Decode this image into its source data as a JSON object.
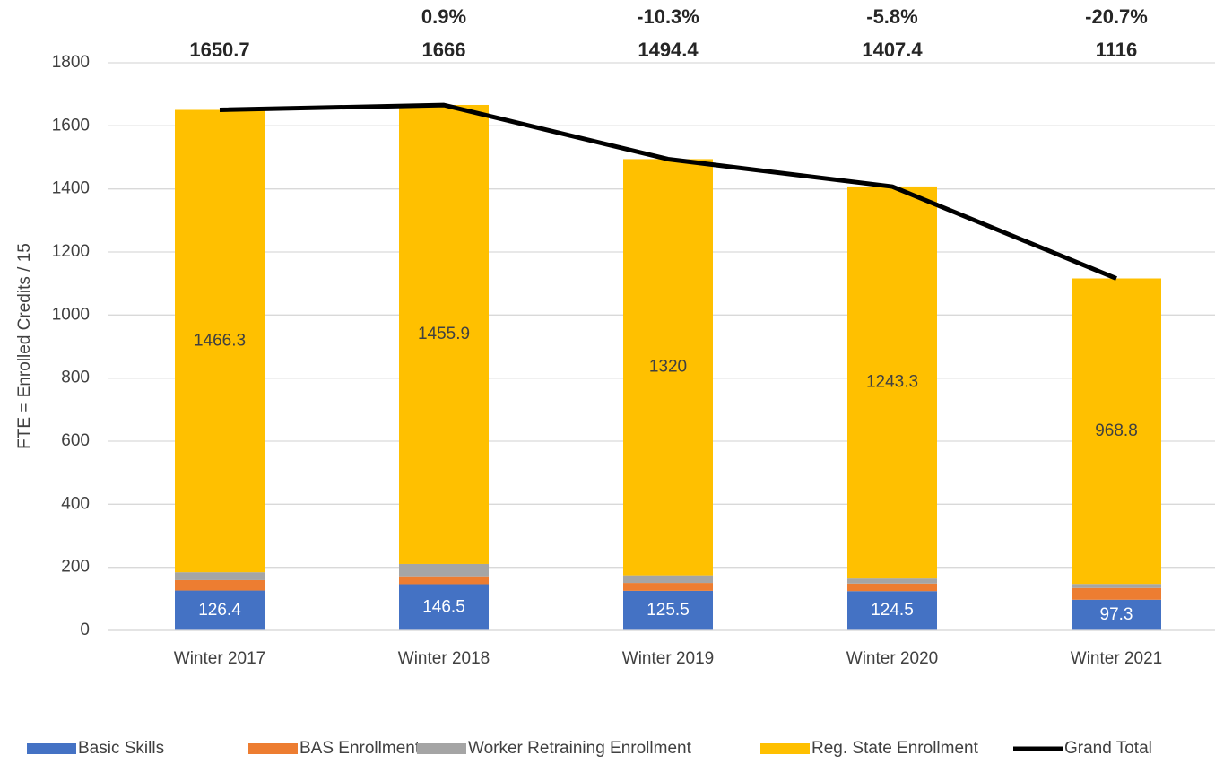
{
  "chart_data": {
    "type": "bar",
    "stacked": true,
    "y_label": "FTE = Enrolled Credits / 15",
    "categories": [
      "Winter 2017",
      "Winter 2018",
      "Winter 2019",
      "Winter 2020",
      "Winter 2021"
    ],
    "series": [
      {
        "name": "Basic Skills",
        "color": "#4472c4",
        "values": [
          126.4,
          146.5,
          125.5,
          124.5,
          97.3
        ],
        "show_labels": true,
        "label_color": "#ffffff"
      },
      {
        "name": "BAS Enrollment",
        "color": "#ed7d31",
        "values": [
          33,
          25,
          25,
          24,
          37
        ],
        "show_labels": false
      },
      {
        "name": "Worker Retraining Enrollment",
        "color": "#a5a5a5",
        "values": [
          25,
          39,
          24,
          16,
          13
        ],
        "show_labels": false
      },
      {
        "name": "Reg. State Enrollment",
        "color": "#ffc000",
        "values": [
          1466.3,
          1455.9,
          1320,
          1243.3,
          968.8
        ],
        "show_labels": true,
        "label_color": "#404040"
      },
      {
        "name": "Grand Total",
        "color": "#000000",
        "type": "line",
        "values": [
          1650.7,
          1666,
          1494.4,
          1407.4,
          1116
        ],
        "show_labels": true
      }
    ],
    "change_labels": [
      null,
      "0.9%",
      "-10.3%",
      "-5.8%",
      "-20.7%"
    ],
    "ylim": [
      0,
      1800
    ],
    "yticks": [
      0,
      200,
      400,
      600,
      800,
      1000,
      1200,
      1400,
      1600,
      1800
    ],
    "grid": true,
    "legend": "bottom"
  }
}
